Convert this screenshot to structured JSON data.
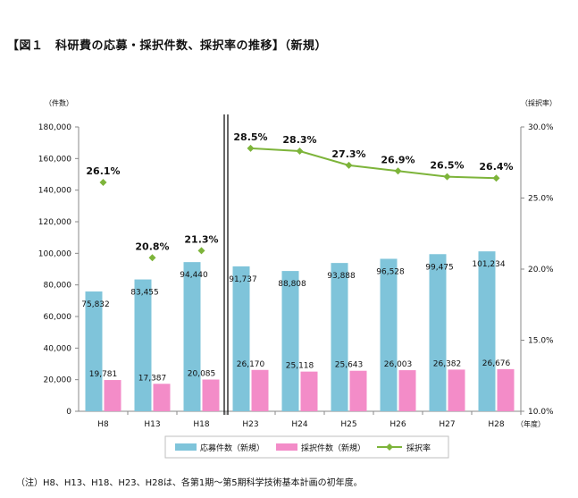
{
  "title": "【図１　科研費の応募・採択件数、採択率の推移】（新規）",
  "footnote": "（注）H8、H13、H18、H23、H28は、各第1期〜第5期科学技術基本計画の初年度。",
  "colors": {
    "applications": "#7FC4DA",
    "adopted": "#F38CC8",
    "rate": "#7DB43A",
    "axis": "#888888",
    "grid": "#d0d0d0"
  },
  "chart_data": {
    "type": "bar",
    "categories": [
      "H8",
      "H13",
      "H18",
      "H23",
      "H24",
      "H25",
      "H26",
      "H27",
      "H28"
    ],
    "series": [
      {
        "name": "応募件数（新規）",
        "type": "bar",
        "axis": "left",
        "values": [
          75832,
          83455,
          94440,
          91737,
          88808,
          93888,
          96528,
          99475,
          101234
        ],
        "labels": [
          "75,832",
          "83,455",
          "94,440",
          "91,737",
          "88,808",
          "93,888",
          "96,528",
          "99,475",
          "101,234"
        ]
      },
      {
        "name": "採択件数（新規）",
        "type": "bar",
        "axis": "left",
        "values": [
          19781,
          17387,
          20085,
          26170,
          25118,
          25643,
          26003,
          26382,
          26676
        ],
        "labels": [
          "19,781",
          "17,387",
          "20,085",
          "26,170",
          "25,118",
          "25,643",
          "26,003",
          "26,382",
          "26,676"
        ]
      },
      {
        "name": "採択率",
        "type": "line",
        "axis": "right",
        "values": [
          26.1,
          20.8,
          21.3,
          28.5,
          28.3,
          27.3,
          26.9,
          26.5,
          26.4
        ],
        "labels": [
          "26.1%",
          "20.8%",
          "21.3%",
          "28.5%",
          "28.3%",
          "27.3%",
          "26.9%",
          "26.5%",
          "26.4%"
        ]
      }
    ],
    "left_axis": {
      "label": "（件数）",
      "min": 0,
      "max": 180000,
      "ticks": [
        "0",
        "20,000",
        "40,000",
        "60,000",
        "80,000",
        "100,000",
        "120,000",
        "140,000",
        "160,000",
        "180,000"
      ]
    },
    "right_axis": {
      "label": "（採択率）",
      "min": 10,
      "max": 30,
      "ticks": [
        "10.0%",
        "15.0%",
        "20.0%",
        "25.0%",
        "30.0%"
      ]
    },
    "x_unit": "（年度）",
    "legend_position": "bottom",
    "grid": false,
    "break_after_category": "H18"
  }
}
